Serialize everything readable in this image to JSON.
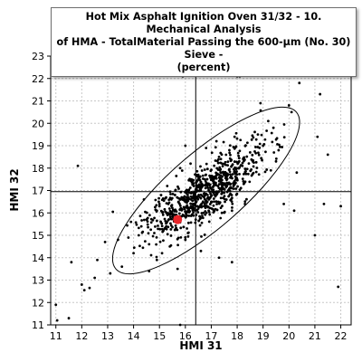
{
  "chart_data": {
    "type": "scatter",
    "title_lines": [
      "Hot Mix Asphalt Ignition Oven 31/32 - 10. Mechanical Analysis",
      "of HMA - TotalMaterial Passing the 600-µm (No. 30) Sieve -",
      "(percent)"
    ],
    "xlabel": "HMI 31",
    "ylabel": "HMI 32",
    "xlim": [
      10.8,
      22.4
    ],
    "ylim": [
      11,
      23
    ],
    "x_ticks": [
      "11",
      "12",
      "13",
      "14",
      "15",
      "16",
      "17",
      "18",
      "19",
      "20",
      "21",
      "22"
    ],
    "y_ticks": [
      "11",
      "12",
      "13",
      "14",
      "15",
      "16",
      "17",
      "18",
      "19",
      "20",
      "21",
      "22",
      "23"
    ],
    "grid": true,
    "reference_lines": {
      "x": 16.4,
      "y": 16.95
    },
    "highlight_point": {
      "x": 15.7,
      "y": 15.7,
      "color": "#e8262a"
    },
    "ellipse": {
      "center": [
        16.8,
        17.0
      ],
      "semi_major": 4.95,
      "semi_minor": 1.55,
      "angle_deg": 41
    },
    "point_color": "#000000",
    "points": [
      [
        11.0,
        11.9
      ],
      [
        11.05,
        11.2
      ],
      [
        11.5,
        11.3
      ],
      [
        11.6,
        13.8
      ],
      [
        11.85,
        18.1
      ],
      [
        12.0,
        12.8
      ],
      [
        12.1,
        12.55
      ],
      [
        12.3,
        12.65
      ],
      [
        12.5,
        13.1
      ],
      [
        12.6,
        13.9
      ],
      [
        13.2,
        16.05
      ],
      [
        13.4,
        14.8
      ],
      [
        13.55,
        13.6
      ],
      [
        13.9,
        15.6
      ],
      [
        14.0,
        14.2
      ],
      [
        14.2,
        15.0
      ],
      [
        14.4,
        16.6
      ],
      [
        14.6,
        13.4
      ],
      [
        14.9,
        16.1
      ],
      [
        15.8,
        11.0
      ],
      [
        15.9,
        22.1
      ],
      [
        17.3,
        14.0
      ],
      [
        17.8,
        13.8
      ],
      [
        18.0,
        22.1
      ],
      [
        18.1,
        22.1
      ],
      [
        18.9,
        20.9
      ],
      [
        19.2,
        20.1
      ],
      [
        19.5,
        18.3
      ],
      [
        19.8,
        16.4
      ],
      [
        20.2,
        16.1
      ],
      [
        20.0,
        20.8
      ],
      [
        20.1,
        20.5
      ],
      [
        20.3,
        17.8
      ],
      [
        20.4,
        21.8
      ],
      [
        21.0,
        15.0
      ],
      [
        21.1,
        19.4
      ],
      [
        21.2,
        21.3
      ],
      [
        21.35,
        16.4
      ],
      [
        21.5,
        18.6
      ],
      [
        21.9,
        12.7
      ],
      [
        22.0,
        16.3
      ],
      [
        16.5,
        17.7
      ],
      [
        16.1,
        15.1
      ],
      [
        16.0,
        14.8
      ],
      [
        15.4,
        14.5
      ],
      [
        15.6,
        16.8
      ],
      [
        16.2,
        18.2
      ],
      [
        17.0,
        16.5
      ],
      [
        17.4,
        17.8
      ],
      [
        16.8,
        18.9
      ],
      [
        17.9,
        19.4
      ],
      [
        18.2,
        18.1
      ],
      [
        17.6,
        17.2
      ],
      [
        15.2,
        15.3
      ],
      [
        14.8,
        15.1
      ],
      [
        15.0,
        16.3
      ],
      [
        15.5,
        15.9
      ],
      [
        16.3,
        16.4
      ],
      [
        16.6,
        17.0
      ],
      [
        17.1,
        17.4
      ],
      [
        17.3,
        18.5
      ],
      [
        18.5,
        18.7
      ],
      [
        18.8,
        19.5
      ],
      [
        17.7,
        18.8
      ],
      [
        16.9,
        16.1
      ],
      [
        16.4,
        15.7
      ],
      [
        15.9,
        16.6
      ],
      [
        15.3,
        17.2
      ],
      [
        14.6,
        14.6
      ],
      [
        14.3,
        15.4
      ],
      [
        13.8,
        14.9
      ],
      [
        15.1,
        14.2
      ],
      [
        16.7,
        16.0
      ],
      [
        17.5,
        16.9
      ],
      [
        18.0,
        17.5
      ],
      [
        18.6,
        18.3
      ],
      [
        19.0,
        19.0
      ],
      [
        17.2,
        19.2
      ],
      [
        16.0,
        19.0
      ],
      [
        15.8,
        18.0
      ],
      [
        19.6,
        18.8
      ],
      [
        19.3,
        17.9
      ],
      [
        13.1,
        13.3
      ],
      [
        14.9,
        13.9
      ],
      [
        12.9,
        14.7
      ],
      [
        18.3,
        16.4
      ],
      [
        17.8,
        16.1
      ],
      [
        15.7,
        13.5
      ],
      [
        16.6,
        14.3
      ],
      [
        19.4,
        19.8
      ]
    ]
  }
}
